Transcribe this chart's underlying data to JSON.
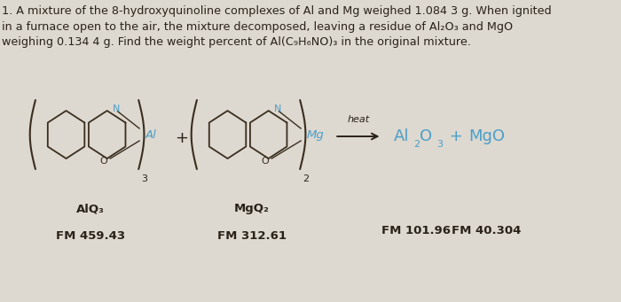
{
  "background_color": "#ddd8d0",
  "title_text": "1. A mixture of the 8-hydroxyquinoline complexes of Al and Mg weighed 1.084 3 g. When ignited\nin a furnace open to the air, the mixture decomposed, leaving a residue of Al₂O₃ and MgO\nweighing 0.134 4 g. Find the weight percent of Al(C₉H₆NO)₃ in the original mixture.",
  "title_fontsize": 9.2,
  "alq3_label": "AlQ₃",
  "alq3_fm": "FM 459.43",
  "mgq2_label": "MgQ₂",
  "mgq2_fm": "FM 312.61",
  "fm_al2o3": "FM 101.96",
  "fm_mgo": "FM 40.304",
  "ring_color": "#3a2e1e",
  "n_color": "#4a9fc8",
  "o_color": "#3a2e1e",
  "text_color": "#2a2218",
  "product_color": "#4a9fc8",
  "bracket_color": "#3a2e1e",
  "metal_al_color": "#4a9fc8",
  "metal_mg_color": "#4a9fc8",
  "arrow_color": "#2a2218",
  "label_color": "#3a2e1e"
}
